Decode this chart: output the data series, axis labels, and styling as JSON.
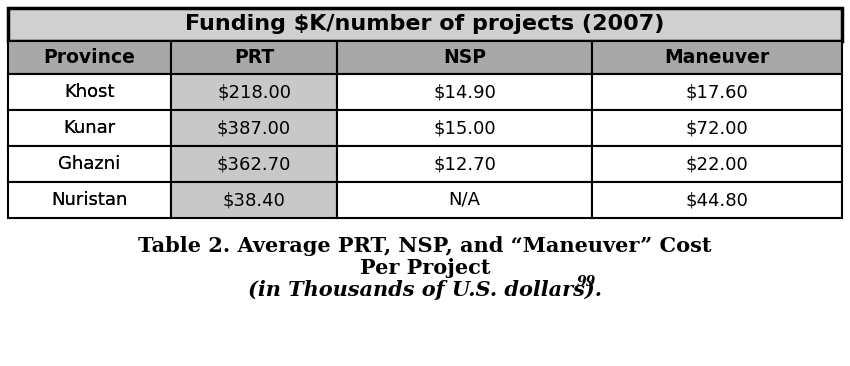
{
  "title_table": "Funding $K/number of projects (2007)",
  "columns": [
    "Province",
    "PRT",
    "NSP",
    "Maneuver"
  ],
  "rows": [
    [
      "Khost",
      "$218.00",
      "$14.90",
      "$17.60"
    ],
    [
      "Kunar",
      "$387.00",
      "$15.00",
      "$72.00"
    ],
    [
      "Ghazni",
      "$362.70",
      "$12.70",
      "$22.00"
    ],
    [
      "Nuristan",
      "$38.40",
      "N/A",
      "$44.80"
    ]
  ],
  "caption_line1": "Table 2. Average PRT, NSP, and “Maneuver” Cost",
  "caption_line2": "Per Project",
  "caption_line3": "(in Thousands of U.S. dollars).",
  "caption_superscript": "99",
  "title_bg": "#d0d0d0",
  "header_bg": "#a8a8a8",
  "prt_col_bg": "#c8c8c8",
  "white_bg": "#ffffff",
  "border_color": "#000000",
  "text_color": "#000000",
  "fig_bg": "#ffffff",
  "title_fontsize": 16,
  "header_fontsize": 13.5,
  "cell_fontsize": 13,
  "caption_fontsize": 15
}
